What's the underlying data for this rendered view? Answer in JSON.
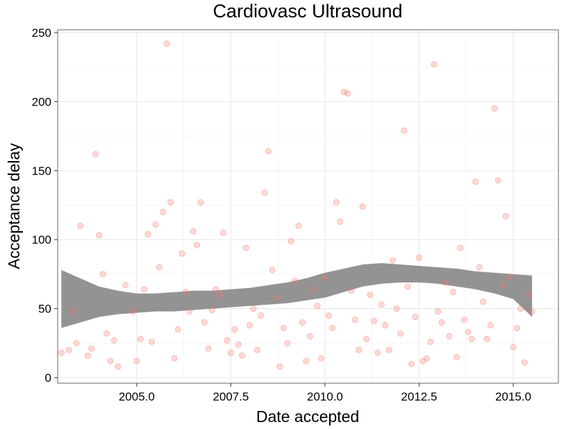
{
  "chart_data": {
    "type": "scatter",
    "title": "Cardiovasc Ultrasound",
    "xlabel": "Date accepted",
    "ylabel": "Acceptance delay",
    "xlim": [
      2002.9,
      2016.2
    ],
    "ylim": [
      -4,
      252
    ],
    "x_ticks": [
      2005.0,
      2007.5,
      2010.0,
      2012.5,
      2015.0
    ],
    "x_tick_labels": [
      "2005.0",
      "2007.5",
      "2010.0",
      "2012.5",
      "2015.0"
    ],
    "y_ticks": [
      0,
      50,
      100,
      150,
      200,
      250
    ],
    "y_tick_labels": [
      "0",
      "50",
      "100",
      "150",
      "200",
      "250"
    ],
    "grid": true,
    "legend": "none",
    "point_color": "#f8766d",
    "band_color": "#808080",
    "points": [
      [
        2003.0,
        18
      ],
      [
        2003.2,
        20
      ],
      [
        2003.3,
        48
      ],
      [
        2003.4,
        25
      ],
      [
        2003.5,
        110
      ],
      [
        2003.7,
        16
      ],
      [
        2003.8,
        21
      ],
      [
        2003.9,
        162
      ],
      [
        2004.0,
        103
      ],
      [
        2004.1,
        75
      ],
      [
        2004.2,
        32
      ],
      [
        2004.3,
        12
      ],
      [
        2004.4,
        27
      ],
      [
        2004.5,
        8
      ],
      [
        2004.7,
        67
      ],
      [
        2004.9,
        48
      ],
      [
        2005.0,
        12
      ],
      [
        2005.1,
        28
      ],
      [
        2005.2,
        64
      ],
      [
        2005.3,
        104
      ],
      [
        2005.4,
        26
      ],
      [
        2005.5,
        111
      ],
      [
        2005.6,
        80
      ],
      [
        2005.7,
        120
      ],
      [
        2005.8,
        242
      ],
      [
        2005.9,
        127
      ],
      [
        2006.0,
        14
      ],
      [
        2006.1,
        35
      ],
      [
        2006.2,
        90
      ],
      [
        2006.3,
        62
      ],
      [
        2006.4,
        48
      ],
      [
        2006.5,
        106
      ],
      [
        2006.6,
        96
      ],
      [
        2006.7,
        127
      ],
      [
        2006.8,
        40
      ],
      [
        2006.9,
        21
      ],
      [
        2007.0,
        49
      ],
      [
        2007.1,
        64
      ],
      [
        2007.2,
        60
      ],
      [
        2007.3,
        105
      ],
      [
        2007.4,
        27
      ],
      [
        2007.5,
        18
      ],
      [
        2007.6,
        35
      ],
      [
        2007.7,
        24
      ],
      [
        2007.8,
        16
      ],
      [
        2007.9,
        94
      ],
      [
        2008.0,
        38
      ],
      [
        2008.1,
        50
      ],
      [
        2008.2,
        20
      ],
      [
        2008.3,
        45
      ],
      [
        2008.4,
        134
      ],
      [
        2008.5,
        164
      ],
      [
        2008.6,
        78
      ],
      [
        2008.7,
        58
      ],
      [
        2008.8,
        8
      ],
      [
        2008.9,
        36
      ],
      [
        2009.0,
        25
      ],
      [
        2009.1,
        99
      ],
      [
        2009.2,
        70
      ],
      [
        2009.3,
        110
      ],
      [
        2009.4,
        40
      ],
      [
        2009.5,
        12
      ],
      [
        2009.6,
        30
      ],
      [
        2009.7,
        64
      ],
      [
        2009.8,
        52
      ],
      [
        2009.9,
        14
      ],
      [
        2010.0,
        72
      ],
      [
        2010.1,
        45
      ],
      [
        2010.2,
        36
      ],
      [
        2010.3,
        127
      ],
      [
        2010.4,
        113
      ],
      [
        2010.5,
        207
      ],
      [
        2010.6,
        206
      ],
      [
        2010.7,
        63
      ],
      [
        2010.8,
        42
      ],
      [
        2010.9,
        20
      ],
      [
        2011.0,
        124
      ],
      [
        2011.1,
        28
      ],
      [
        2011.2,
        60
      ],
      [
        2011.3,
        41
      ],
      [
        2011.4,
        18
      ],
      [
        2011.5,
        53
      ],
      [
        2011.6,
        38
      ],
      [
        2011.7,
        20
      ],
      [
        2011.8,
        85
      ],
      [
        2011.9,
        50
      ],
      [
        2012.0,
        32
      ],
      [
        2012.1,
        179
      ],
      [
        2012.2,
        66
      ],
      [
        2012.3,
        10
      ],
      [
        2012.4,
        44
      ],
      [
        2012.5,
        87
      ],
      [
        2012.6,
        12
      ],
      [
        2012.7,
        14
      ],
      [
        2012.8,
        26
      ],
      [
        2012.9,
        227
      ],
      [
        2013.0,
        48
      ],
      [
        2013.1,
        40
      ],
      [
        2013.2,
        69
      ],
      [
        2013.3,
        30
      ],
      [
        2013.4,
        62
      ],
      [
        2013.5,
        15
      ],
      [
        2013.6,
        94
      ],
      [
        2013.7,
        42
      ],
      [
        2013.8,
        33
      ],
      [
        2013.9,
        28
      ],
      [
        2014.0,
        142
      ],
      [
        2014.1,
        80
      ],
      [
        2014.2,
        55
      ],
      [
        2014.3,
        28
      ],
      [
        2014.4,
        38
      ],
      [
        2014.5,
        195
      ],
      [
        2014.6,
        143
      ],
      [
        2014.7,
        67
      ],
      [
        2014.8,
        117
      ],
      [
        2014.9,
        73
      ],
      [
        2015.0,
        22
      ],
      [
        2015.1,
        36
      ],
      [
        2015.2,
        50
      ],
      [
        2015.3,
        11
      ],
      [
        2015.4,
        60
      ],
      [
        2015.5,
        48
      ]
    ],
    "smooth_band": {
      "x": [
        2003.0,
        2003.5,
        2004.0,
        2004.5,
        2005.0,
        2005.5,
        2006.0,
        2006.5,
        2007.0,
        2007.5,
        2008.0,
        2008.5,
        2009.0,
        2009.5,
        2010.0,
        2010.5,
        2011.0,
        2011.5,
        2012.0,
        2012.5,
        2013.0,
        2013.5,
        2014.0,
        2014.5,
        2015.0,
        2015.5
      ],
      "lower": [
        36,
        40,
        44,
        46,
        47,
        48,
        48,
        49,
        50,
        51,
        52,
        53,
        54,
        56,
        58,
        62,
        66,
        68,
        69,
        69,
        68,
        66,
        64,
        61,
        57,
        44
      ],
      "upper": [
        78,
        72,
        66,
        63,
        61,
        61,
        62,
        63,
        63,
        64,
        65,
        67,
        69,
        72,
        76,
        79,
        82,
        83,
        82,
        81,
        80,
        79,
        77,
        76,
        75,
        74
      ]
    }
  }
}
